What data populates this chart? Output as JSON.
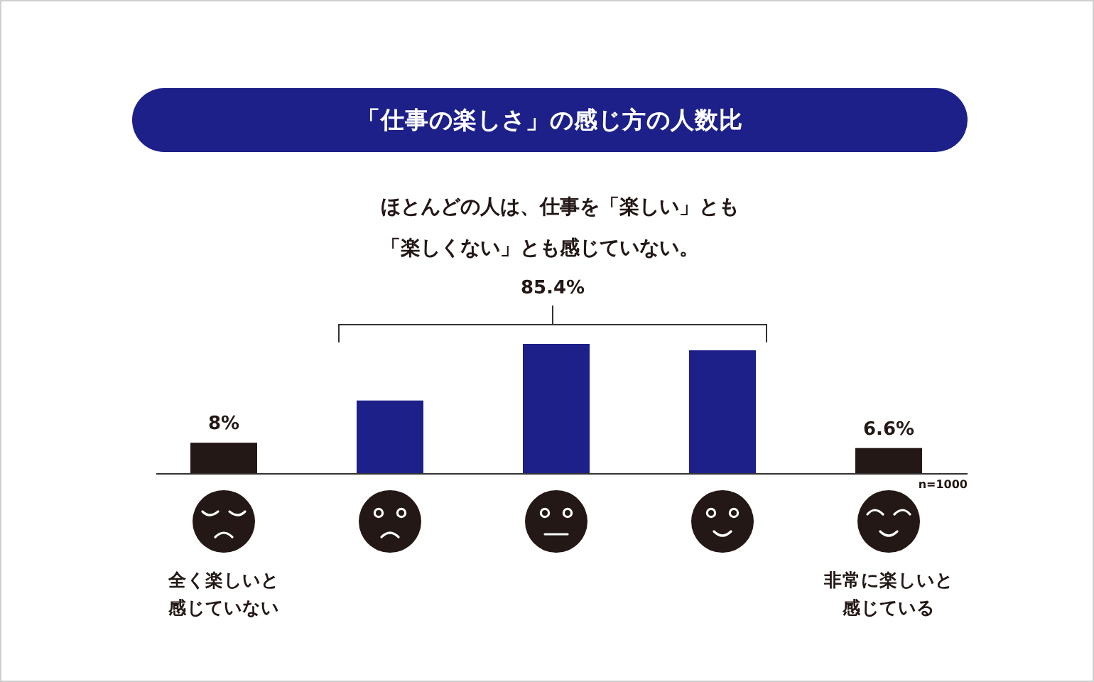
{
  "chart_data": {
    "type": "bar",
    "title": "「仕事の楽しさ」の感じ方の人数比",
    "subtitle": "ほとんどの人は、仕事を「楽しい」とも「楽しくない」とも感じていない。",
    "categories": [
      "全く楽しいと感じていない",
      null,
      null,
      null,
      "非常に楽しいと感じている"
    ],
    "values": [
      8,
      19.1,
      34,
      32.3,
      6.6
    ],
    "colors": [
      "#231815",
      "#1d2088",
      "#1d2088",
      "#1d2088",
      "#231815"
    ],
    "value_labels": [
      "8%",
      null,
      null,
      null,
      "6.6%"
    ],
    "annotations": [
      "85.4%",
      "n=1000"
    ]
  }
}
